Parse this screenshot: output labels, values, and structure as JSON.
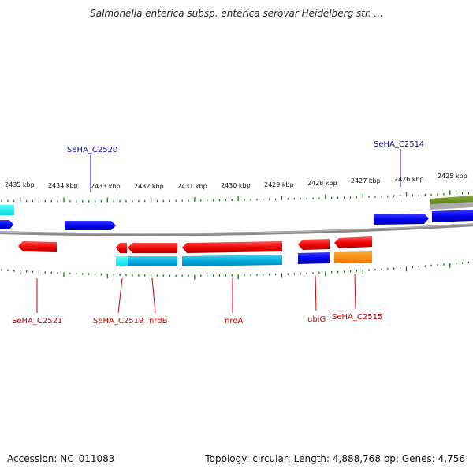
{
  "title": "Salmonella enterica subsp. enterica serovar Heidelberg str. ...",
  "footer": {
    "accession": "Accession: NC_011083",
    "topology": "Topology: circular; Length: 4,888,768 bp; Genes: 4,756"
  },
  "colors": {
    "forward_label": "#1111aa",
    "reverse_label": "#cc0000",
    "backbone": "#808080",
    "tick": "#1a7a1a",
    "gene_red": "#ee0000",
    "gene_blue": "#0000ee",
    "gene_cyan": "#00aadd",
    "gene_orange": "#ff8800",
    "gene_green": "#669922"
  },
  "scale": {
    "unit": "kbp",
    "ticks": [
      "2435 kbp",
      "2434 kbp",
      "2433 kbp",
      "2432 kbp",
      "2431 kbp",
      "2430 kbp",
      "2429 kbp",
      "2428 kbp",
      "2427 kbp",
      "2426 kbp",
      "2425 kbp"
    ]
  },
  "labels": {
    "forward": [
      "SeHA_C2520",
      "SeHA_C2514"
    ],
    "reverse": [
      "SeHA_C2521",
      "SeHA_C2519",
      "nrdB",
      "nrdA",
      "ubiG",
      "SeHA_C2515"
    ]
  }
}
